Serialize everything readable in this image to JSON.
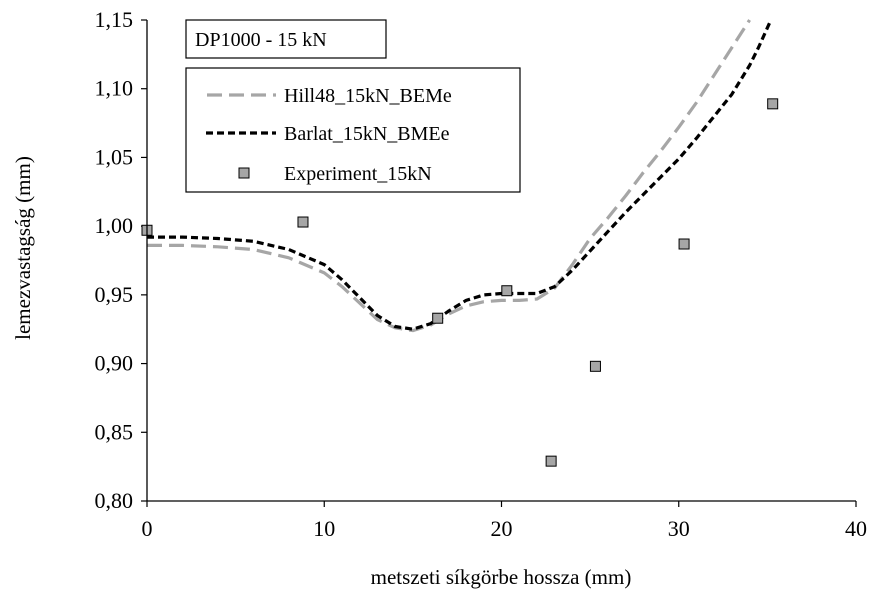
{
  "chart_data": {
    "type": "line",
    "title": "DP1000 - 15 kN",
    "xlabel": "metszeti síkgörbe hossza (mm)",
    "ylabel": "lemezvastagság (mm)",
    "xlim": [
      0,
      40
    ],
    "ylim": [
      0.8,
      1.15
    ],
    "x_ticks": [
      0,
      10,
      20,
      30,
      40
    ],
    "x_tick_labels": [
      "0",
      "10",
      "20",
      "30",
      "40"
    ],
    "y_ticks": [
      0.8,
      0.85,
      0.9,
      0.95,
      1.0,
      1.05,
      1.1,
      1.15
    ],
    "y_tick_labels": [
      "0,80",
      "0,85",
      "0,90",
      "0,95",
      "1,00",
      "1,05",
      "1,10",
      "1,15"
    ],
    "grid": false,
    "legend_position": "top-left",
    "series": [
      {
        "name": "Hill48_15kN_BEMe",
        "kind": "line",
        "style": "long-dash",
        "color": "#a6a6a6",
        "x": [
          0,
          2,
          4,
          6,
          8,
          10,
          11,
          12,
          13,
          14,
          15,
          16,
          17,
          18,
          19,
          20,
          21,
          22,
          23,
          24,
          25,
          26,
          27,
          28,
          29,
          30,
          31,
          32,
          33,
          34
        ],
        "y": [
          0.986,
          0.986,
          0.985,
          0.983,
          0.977,
          0.966,
          0.956,
          0.944,
          0.932,
          0.926,
          0.924,
          0.928,
          0.936,
          0.942,
          0.945,
          0.946,
          0.946,
          0.947,
          0.955,
          0.972,
          0.991,
          1.006,
          1.022,
          1.039,
          1.055,
          1.072,
          1.09,
          1.11,
          1.13,
          1.15
        ]
      },
      {
        "name": "Barlat_15kN_BMEe",
        "kind": "line",
        "style": "short-dash",
        "color": "#000000",
        "x": [
          0,
          2,
          4,
          6,
          8,
          10,
          11,
          12,
          13,
          14,
          15,
          16,
          17,
          18,
          19,
          20,
          21,
          22,
          23,
          24,
          25,
          26,
          27,
          28,
          29,
          30,
          31,
          32,
          33,
          34,
          34.5,
          35.2
        ],
        "y": [
          0.992,
          0.992,
          0.991,
          0.989,
          0.983,
          0.972,
          0.961,
          0.948,
          0.935,
          0.927,
          0.925,
          0.929,
          0.938,
          0.946,
          0.95,
          0.951,
          0.951,
          0.951,
          0.956,
          0.968,
          0.982,
          0.996,
          1.01,
          1.023,
          1.036,
          1.049,
          1.064,
          1.08,
          1.096,
          1.117,
          1.13,
          1.15
        ]
      },
      {
        "name": "Experiment_15kN",
        "kind": "scatter",
        "marker": "square",
        "color": "#a6a6a6",
        "x": [
          0,
          8.8,
          16.4,
          20.3,
          22.8,
          25.3,
          30.3,
          35.3
        ],
        "y": [
          0.997,
          1.003,
          0.933,
          0.953,
          0.829,
          0.898,
          0.987,
          1.089
        ]
      }
    ]
  }
}
